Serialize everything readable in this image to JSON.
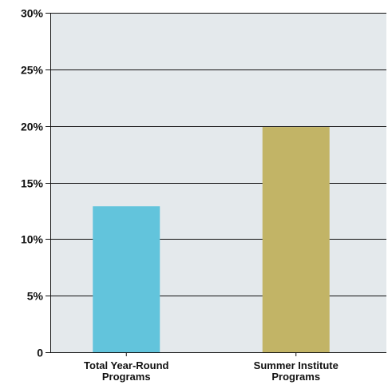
{
  "chart_data": {
    "type": "bar",
    "title": "",
    "xlabel": "",
    "ylabel": "",
    "ylim": [
      0,
      30
    ],
    "yticks": [
      "0",
      "5%",
      "10%",
      "15%",
      "20%",
      "25%",
      "30%"
    ],
    "grid": true,
    "legend": "none",
    "categories": [
      [
        "Total Year-Round",
        "Programs"
      ],
      [
        "Summer Institute",
        "Programs"
      ]
    ],
    "values": [
      12.9,
      19.9
    ],
    "colors": [
      "#62c4dc",
      "#c2b466"
    ],
    "plot_background": "#e4e9ec",
    "grid_color": "#111111"
  }
}
